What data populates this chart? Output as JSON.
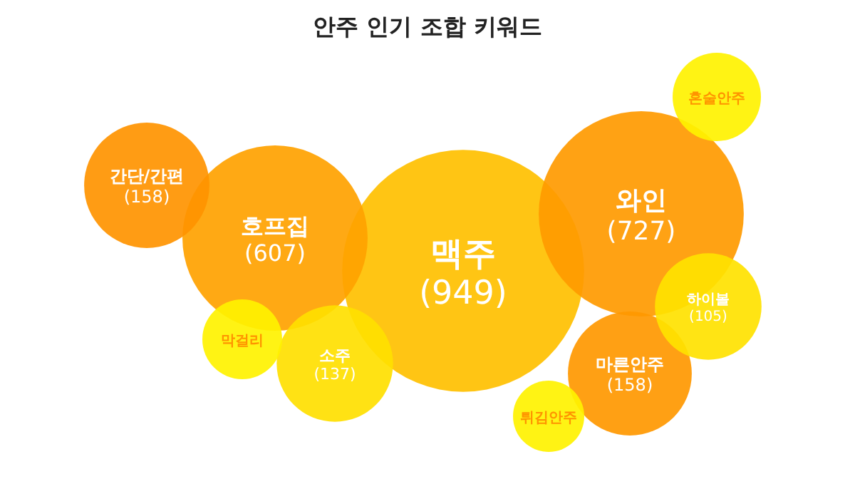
{
  "chart_data": {
    "type": "other",
    "title": "안주 인기 조합 키워드",
    "categories": [
      "맥주",
      "와인",
      "호프집",
      "간단/간편",
      "마른안주",
      "소주",
      "하이볼",
      "혼술안주",
      "막걸리",
      "튀김안주"
    ],
    "values": [
      949,
      727,
      607,
      158,
      158,
      137,
      105,
      null,
      null,
      null
    ],
    "value_labels": [
      "(949)",
      "(727)",
      "(607)",
      "(158)",
      "(158)",
      "(137)",
      "(105)",
      null,
      null,
      null
    ],
    "colors": [
      "#ffc000",
      "#ff9a00",
      "#ffa200",
      "#ff9400",
      "#ff9800",
      "#ffe000",
      "#ffe200",
      "#fff200",
      "#fff200",
      "#fff200"
    ]
  }
}
